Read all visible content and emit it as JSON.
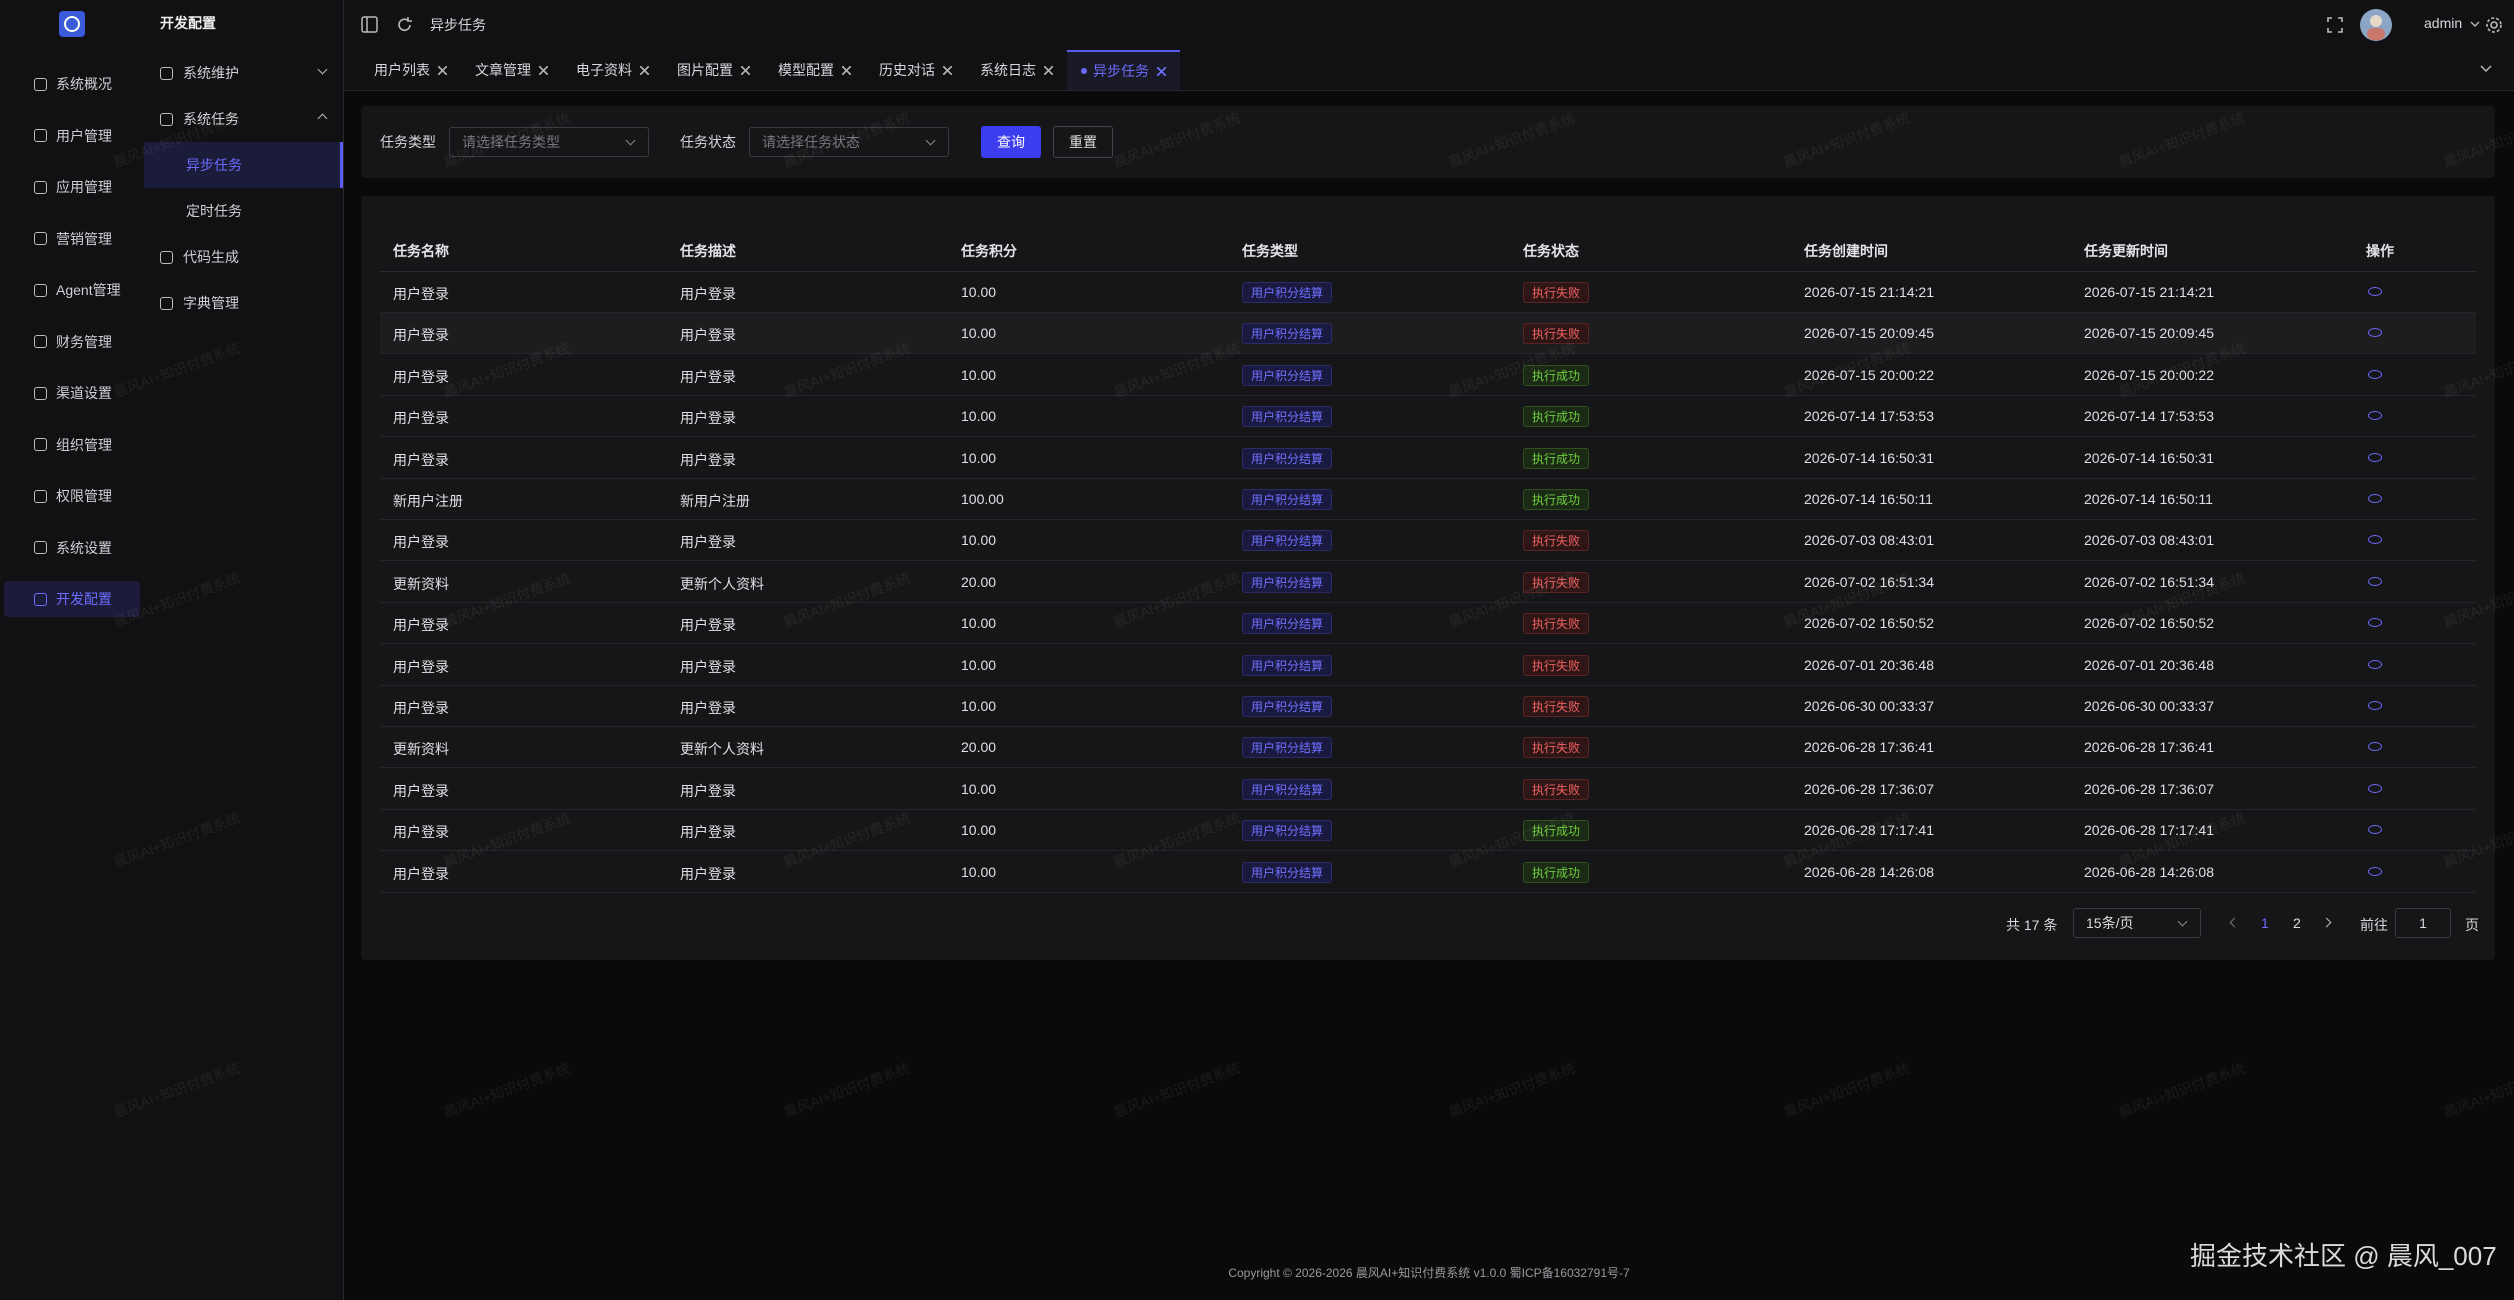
{
  "sidebar": {
    "items": [
      "系统概况",
      "用户管理",
      "应用管理",
      "营销管理",
      "Agent管理",
      "财务管理",
      "渠道设置",
      "组织管理",
      "权限管理",
      "系统设置",
      "开发配置"
    ],
    "active": 10
  },
  "submenu": {
    "title": "开发配置",
    "items": [
      {
        "label": "系统维护"
      },
      {
        "label": "系统任务",
        "children": [
          "异步任务",
          "定时任务"
        ]
      },
      {
        "label": "代码生成"
      },
      {
        "label": "字典管理"
      }
    ],
    "active_child": 0
  },
  "header": {
    "breadcrumb": "异步任务",
    "user": "admin"
  },
  "tabs": {
    "items": [
      "用户列表",
      "文章管理",
      "电子资料",
      "图片配置",
      "模型配置",
      "历史对话",
      "系统日志",
      "异步任务"
    ],
    "active": 7
  },
  "filters": [
    {
      "label": "任务类型",
      "placeholder": "请选择任务类型"
    },
    {
      "label": "任务状态",
      "placeholder": "请选择任务状态"
    }
  ],
  "buttons": [
    "查询",
    "重置"
  ],
  "table": {
    "columns": [
      "任务名称",
      "任务描述",
      "任务积分",
      "任务类型",
      "任务状态",
      "任务创建时间",
      "任务更新时间",
      "操作"
    ],
    "rows": [
      {
        "cells": [
          "用户登录",
          "用户登录",
          "10.00",
          "用户积分结算",
          "执行失败",
          "2026-07-15 21:14:21",
          "2026-07-15 21:14:21"
        ],
        "status_tone": "danger"
      },
      {
        "cells": [
          "用户登录",
          "用户登录",
          "10.00",
          "用户积分结算",
          "执行失败",
          "2026-07-15 20:09:45",
          "2026-07-15 20:09:45"
        ],
        "status_tone": "danger"
      },
      {
        "cells": [
          "用户登录",
          "用户登录",
          "10.00",
          "用户积分结算",
          "执行成功",
          "2026-07-15 20:00:22",
          "2026-07-15 20:00:22"
        ],
        "status_tone": "success"
      },
      {
        "cells": [
          "用户登录",
          "用户登录",
          "10.00",
          "用户积分结算",
          "执行成功",
          "2026-07-14 17:53:53",
          "2026-07-14 17:53:53"
        ],
        "status_tone": "success"
      },
      {
        "cells": [
          "用户登录",
          "用户登录",
          "10.00",
          "用户积分结算",
          "执行成功",
          "2026-07-14 16:50:31",
          "2026-07-14 16:50:31"
        ],
        "status_tone": "success"
      },
      {
        "cells": [
          "新用户注册",
          "新用户注册",
          "100.00",
          "用户积分结算",
          "执行成功",
          "2026-07-14 16:50:11",
          "2026-07-14 16:50:11"
        ],
        "status_tone": "success"
      },
      {
        "cells": [
          "用户登录",
          "用户登录",
          "10.00",
          "用户积分结算",
          "执行失败",
          "2026-07-03 08:43:01",
          "2026-07-03 08:43:01"
        ],
        "status_tone": "danger"
      },
      {
        "cells": [
          "更新资料",
          "更新个人资料",
          "20.00",
          "用户积分结算",
          "执行失败",
          "2026-07-02 16:51:34",
          "2026-07-02 16:51:34"
        ],
        "status_tone": "danger"
      },
      {
        "cells": [
          "用户登录",
          "用户登录",
          "10.00",
          "用户积分结算",
          "执行失败",
          "2026-07-02 16:50:52",
          "2026-07-02 16:50:52"
        ],
        "status_tone": "danger"
      },
      {
        "cells": [
          "用户登录",
          "用户登录",
          "10.00",
          "用户积分结算",
          "执行失败",
          "2026-07-01 20:36:48",
          "2026-07-01 20:36:48"
        ],
        "status_tone": "danger"
      },
      {
        "cells": [
          "用户登录",
          "用户登录",
          "10.00",
          "用户积分结算",
          "执行失败",
          "2026-06-30 00:33:37",
          "2026-06-30 00:33:37"
        ],
        "status_tone": "danger"
      },
      {
        "cells": [
          "更新资料",
          "更新个人资料",
          "20.00",
          "用户积分结算",
          "执行失败",
          "2026-06-28 17:36:41",
          "2026-06-28 17:36:41"
        ],
        "status_tone": "danger"
      },
      {
        "cells": [
          "用户登录",
          "用户登录",
          "10.00",
          "用户积分结算",
          "执行失败",
          "2026-06-28 17:36:07",
          "2026-06-28 17:36:07"
        ],
        "status_tone": "danger"
      },
      {
        "cells": [
          "用户登录",
          "用户登录",
          "10.00",
          "用户积分结算",
          "执行成功",
          "2026-06-28 17:17:41",
          "2026-06-28 17:17:41"
        ],
        "status_tone": "success"
      },
      {
        "cells": [
          "用户登录",
          "用户登录",
          "10.00",
          "用户积分结算",
          "执行成功",
          "2026-06-28 14:26:08",
          "2026-06-28 14:26:08"
        ],
        "status_tone": "success"
      }
    ]
  },
  "pagination": {
    "total": "共 17 条",
    "page_size": "15条/页",
    "pages": [
      "1",
      "2"
    ],
    "current": 0,
    "goto": "前往",
    "goto_value": "1",
    "goto_suffix": "页"
  },
  "footer": "Copyright © 2026-2026 晨风AI+知识付费系统 v1.0.0  蜀ICP备16032791号-7",
  "watermark": "晨风AI+知识付费系统",
  "corner_watermark": "掘金技术社区 @ 晨风_007"
}
